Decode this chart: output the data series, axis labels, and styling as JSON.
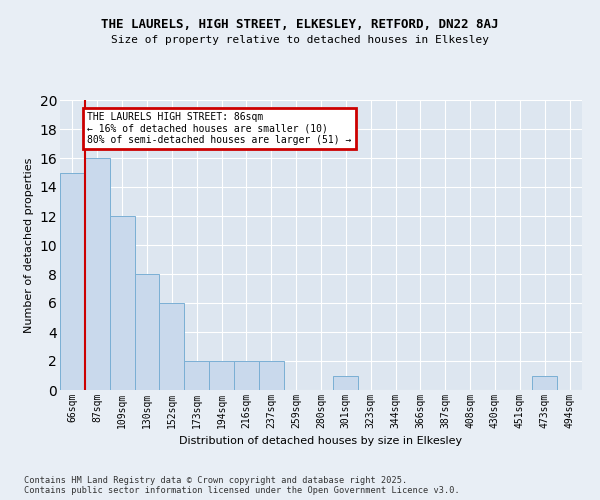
{
  "title": "THE LAURELS, HIGH STREET, ELKESLEY, RETFORD, DN22 8AJ",
  "subtitle": "Size of property relative to detached houses in Elkesley",
  "xlabel": "Distribution of detached houses by size in Elkesley",
  "ylabel": "Number of detached properties",
  "categories": [
    "66sqm",
    "87sqm",
    "109sqm",
    "130sqm",
    "152sqm",
    "173sqm",
    "194sqm",
    "216sqm",
    "237sqm",
    "259sqm",
    "280sqm",
    "301sqm",
    "323sqm",
    "344sqm",
    "366sqm",
    "387sqm",
    "408sqm",
    "430sqm",
    "451sqm",
    "473sqm",
    "494sqm"
  ],
  "values": [
    15,
    16,
    12,
    8,
    6,
    2,
    2,
    2,
    2,
    0,
    0,
    1,
    0,
    0,
    0,
    0,
    0,
    0,
    0,
    1,
    0
  ],
  "bar_color": "#c9d9ec",
  "bar_edge_color": "#7aafd4",
  "highlight_line_color": "#cc0000",
  "ylim": [
    0,
    20
  ],
  "yticks": [
    0,
    2,
    4,
    6,
    8,
    10,
    12,
    14,
    16,
    18,
    20
  ],
  "annotation_title": "THE LAURELS HIGH STREET: 86sqm",
  "annotation_line1": "← 16% of detached houses are smaller (10)",
  "annotation_line2": "80% of semi-detached houses are larger (51) →",
  "annotation_box_color": "#cc0000",
  "background_color": "#dde6f0",
  "fig_background_color": "#e8eef5",
  "footer_line1": "Contains HM Land Registry data © Crown copyright and database right 2025.",
  "footer_line2": "Contains public sector information licensed under the Open Government Licence v3.0."
}
